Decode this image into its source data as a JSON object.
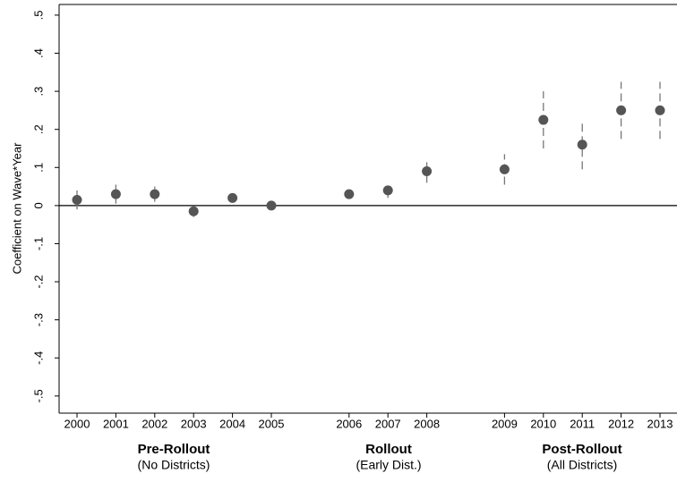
{
  "chart_data": {
    "type": "errorbar",
    "ylabel": "Coefficient on Wave*Year",
    "categories": [
      "2000",
      "2001",
      "2002",
      "2003",
      "2004",
      "2005",
      null,
      "2006",
      "2007",
      "2008",
      null,
      "2009",
      "2010",
      "2011",
      "2012",
      "2013"
    ],
    "series": [
      {
        "color": "#555555",
        "values": [
          0.015,
          0.03,
          0.03,
          -0.015,
          0.02,
          0,
          null,
          0.03,
          0.04,
          0.09,
          null,
          0.095,
          0.225,
          0.16,
          0.25,
          0.25
        ],
        "ci_low": [
          -0.01,
          0.005,
          0.01,
          -0.03,
          0.015,
          -0.005,
          null,
          0.025,
          0.02,
          0.06,
          null,
          0.055,
          0.15,
          0.095,
          0.175,
          0.175
        ],
        "ci_high": [
          0.04,
          0.055,
          0.05,
          -0.005,
          0.03,
          0.005,
          null,
          0.04,
          0.05,
          0.125,
          null,
          0.135,
          0.3,
          0.22,
          0.325,
          0.325
        ]
      }
    ],
    "ylim": [
      -0.545,
      0.528
    ],
    "yticks": [
      {
        "value": -0.5,
        "label": "-.5"
      },
      {
        "value": -0.4,
        "label": "-.4"
      },
      {
        "value": -0.3,
        "label": "-.3"
      },
      {
        "value": -0.2,
        "label": "-.2"
      },
      {
        "value": -0.1,
        "label": "-.1"
      },
      0,
      {
        "value": 0.1,
        "label": ".1"
      },
      {
        "value": 0.2,
        "label": ".2"
      },
      {
        "value": 0.3,
        "label": ".3"
      },
      {
        "value": 0.4,
        "label": ".4"
      },
      {
        "value": 0.5,
        "label": ".5"
      }
    ],
    "reference_line": 0,
    "groups": [
      {
        "title": "Pre-Rollout",
        "subtitle": "(No Districts)"
      },
      {
        "title": "Rollout",
        "subtitle": "(Early Dist.)"
      },
      {
        "title": "Post-Rollout",
        "subtitle": "(All Districts)"
      }
    ]
  }
}
